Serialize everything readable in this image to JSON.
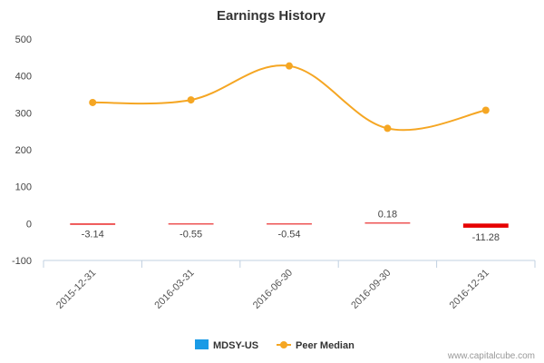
{
  "chart_data": {
    "type": "bar",
    "title": "Earnings History",
    "categories": [
      "2015-12-31",
      "2016-03-31",
      "2016-06-30",
      "2016-09-30",
      "2016-12-31"
    ],
    "y_ticks": [
      "500",
      "400",
      "300",
      "200",
      "100",
      "0",
      "-100"
    ],
    "ylim": [
      -100,
      500
    ],
    "series": [
      {
        "name": "MDSY-US",
        "type": "bar",
        "values": [
          -3.14,
          -0.55,
          -0.54,
          0.18,
          -11.28
        ],
        "labels": [
          "-3.14",
          "-0.55",
          "-0.54",
          "0.18",
          "-11.28"
        ],
        "bar_colors": [
          "#e60000",
          "#e60000",
          "#e60000",
          "#e60000",
          "#e60000"
        ],
        "legend_color": "#1a9be6"
      },
      {
        "name": "Peer Median",
        "type": "line",
        "values": [
          328,
          335,
          427,
          258,
          307
        ],
        "color": "#f5a623"
      }
    ],
    "legend": {
      "position": "bottom-center"
    },
    "grid": false
  },
  "credit": "www.capitalcube.com"
}
